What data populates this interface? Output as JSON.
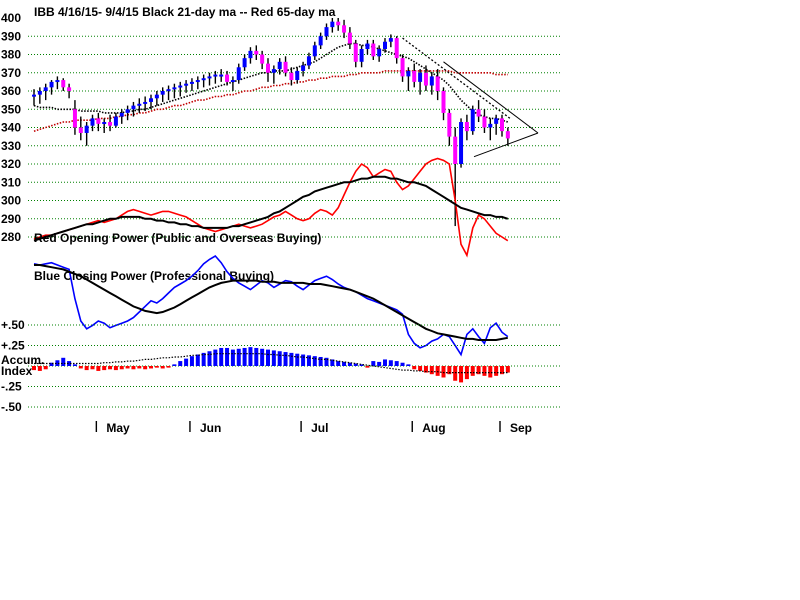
{
  "chart_data": {
    "type": "candlestick",
    "title": "IBB   4/16/15- 9/4/15    Black 21-day ma --  Red 65-day ma",
    "price_axis": {
      "ylim": [
        280,
        400
      ],
      "ticks": [
        400,
        390,
        380,
        370,
        360,
        350,
        340,
        330,
        320,
        310,
        300,
        290,
        280
      ],
      "grid": "dotted green"
    },
    "labels": {
      "opening_power": "Red Opening Power (Public and Overseas Buying)",
      "closing_power": "Blue Closing Power (Professional Buying)",
      "accum_line1": "Accum.",
      "accum_line2": "Index"
    },
    "accum_axis": {
      "ylim": [
        -0.5,
        0.5
      ],
      "ticks": [
        "+.50",
        "+.25",
        "-.25",
        "-.50"
      ]
    },
    "months": [
      "May",
      "Jun",
      "Jul",
      "Aug",
      "Sep"
    ],
    "ohlc": [
      [
        357,
        361,
        352,
        358
      ],
      [
        358,
        362,
        353,
        360
      ],
      [
        360,
        364,
        355,
        362
      ],
      [
        362,
        366,
        358,
        365
      ],
      [
        365,
        368,
        361,
        366
      ],
      [
        366,
        367,
        360,
        362
      ],
      [
        362,
        364,
        356,
        360
      ],
      [
        350,
        355,
        336,
        340
      ],
      [
        340,
        346,
        333,
        337
      ],
      [
        337,
        343,
        330,
        341
      ],
      [
        341,
        347,
        338,
        345
      ],
      [
        345,
        348,
        338,
        342
      ],
      [
        342,
        345,
        337,
        343
      ],
      [
        343,
        347,
        338,
        341
      ],
      [
        341,
        348,
        340,
        346
      ],
      [
        346,
        350,
        342,
        348
      ],
      [
        348,
        352,
        344,
        350
      ],
      [
        350,
        354,
        346,
        352
      ],
      [
        352,
        356,
        348,
        353
      ],
      [
        353,
        357,
        349,
        354
      ],
      [
        354,
        358,
        350,
        356
      ],
      [
        356,
        360,
        352,
        358
      ],
      [
        358,
        362,
        354,
        360
      ],
      [
        360,
        363,
        355,
        361
      ],
      [
        361,
        364,
        356,
        362
      ],
      [
        362,
        365,
        357,
        363
      ],
      [
        363,
        366,
        359,
        364
      ],
      [
        364,
        367,
        360,
        365
      ],
      [
        365,
        368,
        361,
        366
      ],
      [
        366,
        369,
        362,
        367
      ],
      [
        367,
        370,
        363,
        368
      ],
      [
        368,
        371,
        364,
        369
      ],
      [
        369,
        372,
        365,
        369
      ],
      [
        369,
        371,
        363,
        365
      ],
      [
        365,
        368,
        360,
        366
      ],
      [
        366,
        375,
        364,
        373
      ],
      [
        373,
        380,
        371,
        378
      ],
      [
        378,
        384,
        375,
        382
      ],
      [
        382,
        385,
        377,
        380
      ],
      [
        380,
        382,
        372,
        375
      ],
      [
        375,
        378,
        365,
        370
      ],
      [
        370,
        374,
        364,
        372
      ],
      [
        372,
        378,
        369,
        376
      ],
      [
        376,
        379,
        368,
        370
      ],
      [
        370,
        373,
        363,
        366
      ],
      [
        366,
        373,
        364,
        371
      ],
      [
        371,
        376,
        368,
        374
      ],
      [
        374,
        381,
        372,
        379
      ],
      [
        379,
        387,
        377,
        385
      ],
      [
        385,
        392,
        383,
        390
      ],
      [
        390,
        397,
        388,
        395
      ],
      [
        395,
        400,
        392,
        398
      ],
      [
        398,
        400,
        393,
        396
      ],
      [
        396,
        399,
        389,
        392
      ],
      [
        392,
        395,
        383,
        386
      ],
      [
        386,
        388,
        373,
        376
      ],
      [
        376,
        385,
        373,
        383
      ],
      [
        383,
        388,
        380,
        386
      ],
      [
        386,
        388,
        377,
        379
      ],
      [
        379,
        385,
        376,
        383
      ],
      [
        383,
        389,
        381,
        387
      ],
      [
        387,
        391,
        384,
        389
      ],
      [
        389,
        390,
        375,
        378
      ],
      [
        378,
        380,
        365,
        368
      ],
      [
        368,
        373,
        360,
        371
      ],
      [
        371,
        375,
        362,
        365
      ],
      [
        365,
        372,
        358,
        370
      ],
      [
        370,
        374,
        360,
        363
      ],
      [
        363,
        370,
        358,
        368
      ],
      [
        368,
        372,
        355,
        360
      ],
      [
        360,
        362,
        344,
        348
      ],
      [
        348,
        350,
        330,
        335
      ],
      [
        335,
        340,
        286,
        320
      ],
      [
        320,
        345,
        318,
        343
      ],
      [
        343,
        347,
        333,
        338
      ],
      [
        338,
        352,
        336,
        350
      ],
      [
        350,
        355,
        343,
        346
      ],
      [
        346,
        350,
        337,
        340
      ],
      [
        340,
        345,
        333,
        342
      ],
      [
        342,
        347,
        336,
        345
      ],
      [
        345,
        347,
        335,
        338
      ],
      [
        338,
        340,
        330,
        334
      ]
    ],
    "ma21": [
      352,
      351,
      351,
      351,
      350,
      350,
      350,
      350,
      349,
      349,
      349,
      349,
      348,
      348,
      348,
      348,
      349,
      349,
      350,
      350,
      351,
      352,
      353,
      354,
      355,
      356,
      357,
      358,
      359,
      360,
      361,
      362,
      363,
      364,
      365,
      366,
      367,
      368,
      369,
      370,
      370,
      371,
      371,
      371,
      372,
      373,
      374,
      375,
      376,
      378,
      380,
      382,
      384,
      385,
      386,
      386,
      385,
      385,
      384,
      383,
      382,
      381,
      380,
      379,
      378,
      376,
      374,
      372,
      370,
      368,
      366,
      363,
      359,
      355,
      352,
      349,
      347,
      346,
      345,
      345,
      344,
      343
    ],
    "ma65": [
      338,
      339,
      340,
      341,
      342,
      343,
      343,
      344,
      344,
      344,
      344,
      345,
      345,
      345,
      346,
      346,
      347,
      347,
      348,
      348,
      349,
      350,
      350,
      351,
      352,
      352,
      353,
      354,
      355,
      355,
      356,
      357,
      357,
      358,
      358,
      359,
      360,
      360,
      361,
      362,
      362,
      363,
      363,
      364,
      364,
      365,
      365,
      366,
      366,
      367,
      367,
      368,
      368,
      368,
      369,
      369,
      370,
      370,
      370,
      370,
      371,
      371,
      371,
      371,
      371,
      371,
      371,
      371,
      371,
      371,
      371,
      371,
      370,
      370,
      370,
      370,
      370,
      370,
      370,
      369,
      369,
      369
    ],
    "opening_power": [
      279,
      280,
      281,
      281,
      282,
      283,
      284,
      285,
      286,
      287,
      288,
      289,
      288,
      289,
      290,
      292,
      294,
      295,
      294,
      293,
      292,
      293,
      294,
      294,
      293,
      292,
      291,
      289,
      287,
      285,
      284,
      283,
      284,
      285,
      286,
      287,
      286,
      285,
      286,
      287,
      289,
      291,
      292,
      294,
      292,
      290,
      289,
      290,
      293,
      295,
      294,
      292,
      296,
      303,
      310,
      316,
      320,
      318,
      313,
      315,
      317,
      316,
      310,
      306,
      308,
      312,
      316,
      320,
      322,
      323,
      322,
      320,
      300,
      276,
      270,
      285,
      292,
      290,
      286,
      282,
      280,
      278
    ],
    "black_opening_ma": [
      278,
      279,
      280,
      281,
      282,
      283,
      284,
      285,
      286,
      287,
      287,
      288,
      289,
      290,
      290,
      291,
      291,
      291,
      291,
      290,
      290,
      289,
      289,
      288,
      288,
      287,
      287,
      286,
      286,
      285,
      285,
      285,
      285,
      285,
      286,
      286,
      287,
      288,
      289,
      290,
      291,
      293,
      294,
      296,
      298,
      300,
      302,
      303,
      305,
      306,
      307,
      308,
      309,
      310,
      310,
      311,
      312,
      312,
      313,
      313,
      313,
      312,
      312,
      311,
      310,
      310,
      309,
      308,
      306,
      304,
      302,
      300,
      298,
      296,
      295,
      294,
      293,
      292,
      292,
      291,
      291,
      290
    ],
    "closing_power": [
      0.93,
      0.92,
      0.93,
      0.94,
      0.92,
      0.9,
      0.88,
      0.62,
      0.42,
      0.35,
      0.38,
      0.42,
      0.4,
      0.36,
      0.38,
      0.4,
      0.42,
      0.45,
      0.5,
      0.55,
      0.6,
      0.58,
      0.62,
      0.67,
      0.72,
      0.75,
      0.78,
      0.82,
      0.87,
      0.93,
      0.97,
      1.0,
      0.94,
      0.86,
      0.8,
      0.76,
      0.73,
      0.7,
      0.74,
      0.78,
      0.76,
      0.72,
      0.75,
      0.78,
      0.77,
      0.73,
      0.7,
      0.74,
      0.78,
      0.8,
      0.82,
      0.79,
      0.75,
      0.72,
      0.7,
      0.68,
      0.65,
      0.62,
      0.6,
      0.58,
      0.56,
      0.54,
      0.52,
      0.48,
      0.3,
      0.22,
      0.18,
      0.2,
      0.24,
      0.26,
      0.3,
      0.28,
      0.2,
      0.12,
      0.3,
      0.35,
      0.28,
      0.22,
      0.36,
      0.4,
      0.32,
      0.28
    ],
    "closing_power_ma": [
      0.92,
      0.92,
      0.91,
      0.9,
      0.89,
      0.88,
      0.86,
      0.84,
      0.82,
      0.79,
      0.76,
      0.73,
      0.7,
      0.67,
      0.64,
      0.61,
      0.58,
      0.55,
      0.53,
      0.51,
      0.5,
      0.49,
      0.5,
      0.52,
      0.54,
      0.57,
      0.6,
      0.63,
      0.66,
      0.69,
      0.72,
      0.74,
      0.76,
      0.77,
      0.78,
      0.78,
      0.78,
      0.78,
      0.78,
      0.77,
      0.77,
      0.77,
      0.76,
      0.76,
      0.76,
      0.76,
      0.76,
      0.75,
      0.75,
      0.75,
      0.74,
      0.73,
      0.72,
      0.71,
      0.7,
      0.68,
      0.66,
      0.64,
      0.62,
      0.59,
      0.56,
      0.53,
      0.5,
      0.47,
      0.44,
      0.41,
      0.38,
      0.35,
      0.33,
      0.31,
      0.3,
      0.29,
      0.28,
      0.27,
      0.26,
      0.26,
      0.25,
      0.25,
      0.25,
      0.25,
      0.26,
      0.27
    ],
    "accum_index": [
      -0.05,
      -0.06,
      -0.04,
      0.04,
      0.07,
      0.1,
      0.06,
      0.02,
      -0.03,
      -0.05,
      -0.04,
      -0.06,
      -0.05,
      -0.04,
      -0.05,
      -0.04,
      -0.03,
      -0.04,
      -0.03,
      -0.04,
      -0.03,
      -0.02,
      -0.03,
      -0.02,
      0.02,
      0.06,
      0.09,
      0.12,
      0.14,
      0.16,
      0.18,
      0.2,
      0.22,
      0.22,
      0.2,
      0.21,
      0.22,
      0.23,
      0.22,
      0.21,
      0.2,
      0.19,
      0.18,
      0.17,
      0.16,
      0.15,
      0.14,
      0.13,
      0.12,
      0.11,
      0.1,
      0.08,
      0.06,
      0.05,
      0.04,
      0.03,
      0.02,
      -0.02,
      0.06,
      0.05,
      0.08,
      0.07,
      0.06,
      0.04,
      0.02,
      -0.04,
      -0.06,
      -0.08,
      -0.1,
      -0.12,
      -0.14,
      -0.1,
      -0.18,
      -0.2,
      -0.16,
      -0.12,
      -0.1,
      -0.12,
      -0.14,
      -0.12,
      -0.1,
      -0.08
    ],
    "accum_ma": [
      0.03,
      0.03,
      0.03,
      0.03,
      0.03,
      0.03,
      0.03,
      0.03,
      0.03,
      0.03,
      0.03,
      0.03,
      0.04,
      0.04,
      0.05,
      0.05,
      0.06,
      0.06,
      0.07,
      0.08,
      0.08,
      0.09,
      0.1,
      0.1,
      0.11,
      0.11,
      0.12,
      0.13,
      0.13,
      0.14,
      0.14,
      0.15,
      0.15,
      0.15,
      0.15,
      0.15,
      0.15,
      0.15,
      0.15,
      0.15,
      0.14,
      0.14,
      0.13,
      0.13,
      0.12,
      0.11,
      0.11,
      0.1,
      0.09,
      0.08,
      0.08,
      0.07,
      0.06,
      0.05,
      0.04,
      0.03,
      0.02,
      0.01,
      0.0,
      -0.01,
      -0.02,
      -0.03,
      -0.04,
      -0.05,
      -0.05,
      -0.06,
      -0.06,
      -0.07,
      -0.07,
      -0.07,
      -0.08,
      -0.08,
      -0.08,
      -0.08,
      -0.08,
      -0.08,
      -0.08,
      -0.08,
      -0.08,
      -0.08,
      -0.08,
      -0.08
    ],
    "colors": {
      "up": "#0000ff",
      "down": "#ff00ff",
      "opening_power": "#ff0000",
      "closing_power": "#0000ff",
      "ma21": "#000000",
      "ma65": "#c00000",
      "grid": "#008000",
      "accum_pos": "#0000ff",
      "accum_neg": "#ff0000"
    }
  }
}
